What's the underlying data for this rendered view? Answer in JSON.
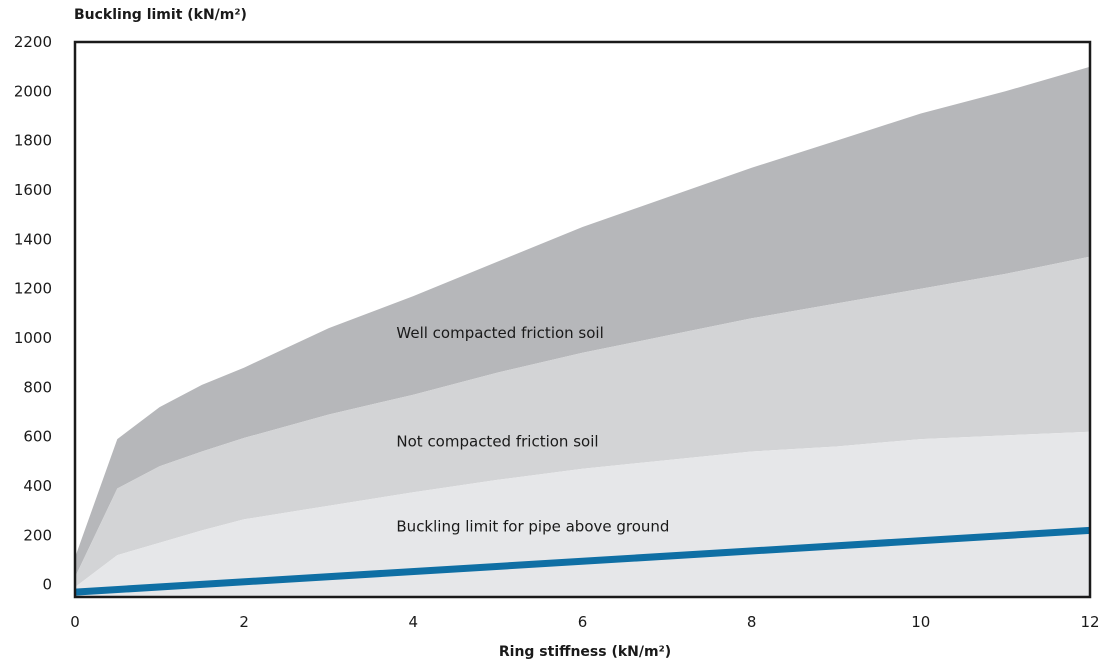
{
  "chart_data": {
    "type": "area",
    "ylabel": "Buckling limit (kN/m²)",
    "xlabel": "Ring stiffness (kN/m²)",
    "xlim": [
      0,
      12
    ],
    "ylim": [
      -50,
      2200
    ],
    "x_ticks": [
      0,
      2,
      4,
      6,
      8,
      10,
      12
    ],
    "y_ticks": [
      0,
      200,
      400,
      600,
      800,
      1000,
      1200,
      1400,
      1600,
      1800,
      2000,
      2200
    ],
    "grid": false,
    "colors": {
      "band_well": "#b6b7ba",
      "band_not": "#d3d4d6",
      "band_above": "#e6e7e9",
      "line": "#0f6fa4",
      "frame": "#1a1a1a"
    },
    "x": [
      0,
      0.5,
      1,
      1.5,
      2,
      3,
      4,
      5,
      6,
      7,
      8,
      9,
      10,
      11,
      12
    ],
    "bands": [
      {
        "name": "Well compacted friction soil",
        "label_anchor": [
          3.8,
          1000
        ],
        "lower": [
          30,
          390,
          480,
          540,
          595,
          690,
          770,
          860,
          940,
          1010,
          1080,
          1140,
          1200,
          1260,
          1330
        ],
        "upper": [
          110,
          590,
          720,
          810,
          880,
          1040,
          1170,
          1310,
          1450,
          1570,
          1690,
          1800,
          1910,
          2000,
          2100
        ]
      },
      {
        "name": "Not compacted friction soil",
        "label_anchor": [
          3.8,
          560
        ],
        "lower": [
          -10,
          120,
          170,
          220,
          265,
          320,
          375,
          425,
          470,
          505,
          540,
          560,
          590,
          605,
          620
        ],
        "upper": [
          30,
          390,
          480,
          540,
          595,
          690,
          770,
          860,
          940,
          1010,
          1080,
          1140,
          1200,
          1260,
          1330
        ]
      },
      {
        "name": "Buckling limit for pipe above ground",
        "label_anchor": [
          3.8,
          215
        ],
        "lower": [
          -50,
          -50,
          -50,
          -50,
          -50,
          -50,
          -50,
          -50,
          -50,
          -50,
          -50,
          -50,
          -50,
          -50,
          -50
        ],
        "upper": [
          -10,
          120,
          170,
          220,
          265,
          320,
          375,
          425,
          470,
          505,
          540,
          560,
          590,
          605,
          620
        ]
      }
    ],
    "series": [
      {
        "x": [
          0,
          12
        ],
        "values": [
          -30,
          220
        ]
      }
    ]
  }
}
